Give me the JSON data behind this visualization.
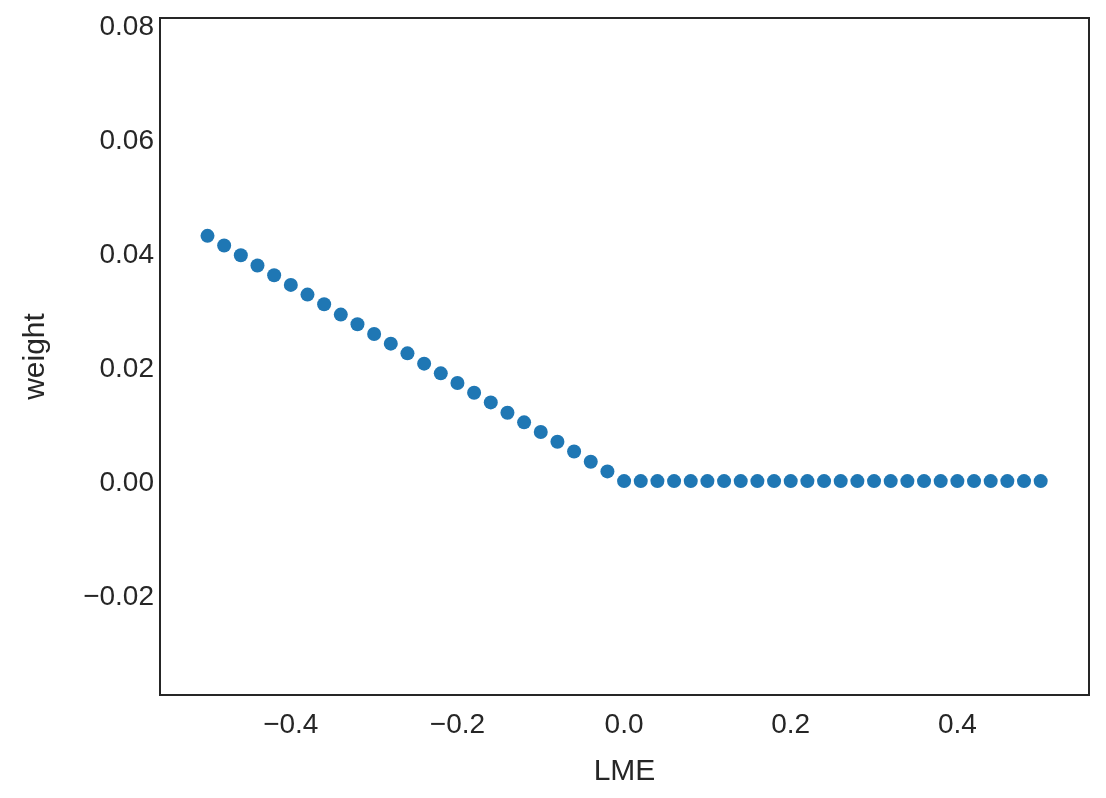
{
  "chart_data": {
    "type": "scatter",
    "xlabel": "LME",
    "ylabel": "weight",
    "x": [
      -0.5,
      -0.48,
      -0.46,
      -0.44,
      -0.42,
      -0.4,
      -0.38,
      -0.36,
      -0.34,
      -0.32,
      -0.3,
      -0.28,
      -0.26,
      -0.24,
      -0.22,
      -0.2,
      -0.18,
      -0.16,
      -0.14,
      -0.12,
      -0.1,
      -0.08,
      -0.06,
      -0.04,
      -0.02,
      0,
      0.02,
      0.04,
      0.06,
      0.08,
      0.1,
      0.12,
      0.14,
      0.16,
      0.18,
      0.2,
      0.22,
      0.24,
      0.26,
      0.28,
      0.3,
      0.32,
      0.34,
      0.36,
      0.38,
      0.4,
      0.42,
      0.44,
      0.46,
      0.48,
      0.5
    ],
    "series": [
      {
        "color": "#1f77b4",
        "values": [
          0.043,
          0.0413,
          0.0396,
          0.0378,
          0.0361,
          0.0344,
          0.0327,
          0.031,
          0.0292,
          0.0275,
          0.0258,
          0.0241,
          0.0224,
          0.0206,
          0.0189,
          0.0172,
          0.0155,
          0.0138,
          0.012,
          0.0103,
          0.0086,
          0.0069,
          0.0052,
          0.0034,
          0.0017,
          0,
          0,
          0,
          0,
          0,
          0,
          0,
          0,
          0,
          0,
          0,
          0,
          0,
          0,
          0,
          0,
          0,
          0,
          0,
          0,
          0,
          0,
          0,
          0,
          0,
          0
        ]
      }
    ],
    "xlim": [
      -0.557,
      0.558
    ],
    "ylim": [
      -0.0375,
      0.0812
    ],
    "xticks": [
      {
        "value": -0.4,
        "label": "−0.4"
      },
      {
        "value": -0.2,
        "label": "−0.2"
      },
      {
        "value": 0,
        "label": "0.0"
      },
      {
        "value": 0.2,
        "label": "0.2"
      },
      {
        "value": 0.4,
        "label": "0.4"
      }
    ],
    "yticks": [
      {
        "value": -0.02,
        "label": "−0.02"
      },
      {
        "value": 0,
        "label": "0.00"
      },
      {
        "value": 0.02,
        "label": "0.02"
      },
      {
        "value": 0.04,
        "label": "0.04"
      },
      {
        "value": 0.06,
        "label": "0.06"
      },
      {
        "value": 0.08,
        "label": "0.08"
      }
    ],
    "marker": "circle",
    "grid": false
  }
}
